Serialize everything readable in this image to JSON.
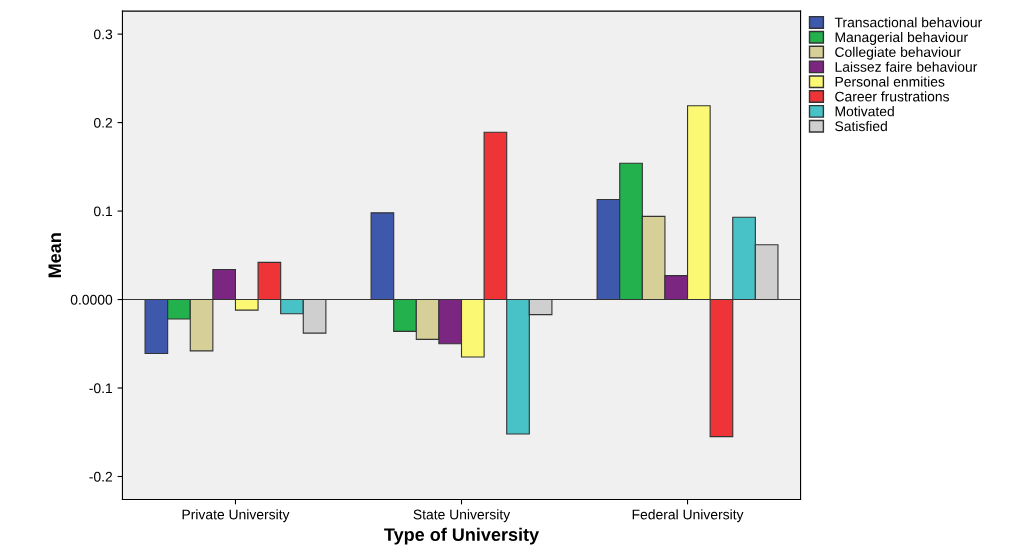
{
  "chart_data": {
    "type": "bar",
    "xlabel": "Type of University",
    "ylabel": "Mean",
    "categories": [
      "Private University",
      "State University",
      "Federal University"
    ],
    "series": [
      {
        "name": "Transactional behaviour",
        "color": "#3e58ac",
        "values": [
          -0.061,
          0.098,
          0.113
        ]
      },
      {
        "name": "Managerial behaviour",
        "color": "#22b14c",
        "values": [
          -0.022,
          -0.036,
          0.154
        ]
      },
      {
        "name": "Collegiate behaviour",
        "color": "#d6cf98",
        "values": [
          -0.058,
          -0.045,
          0.094
        ]
      },
      {
        "name": "Laissez faire behaviour",
        "color": "#7b2680",
        "values": [
          0.034,
          -0.05,
          0.027
        ]
      },
      {
        "name": "Personal enmities",
        "color": "#fbf873",
        "values": [
          -0.012,
          -0.065,
          0.219
        ]
      },
      {
        "name": "Career frustrations",
        "color": "#ef3438",
        "values": [
          0.042,
          0.189,
          -0.155
        ]
      },
      {
        "name": "Motivated",
        "color": "#48c2c6",
        "values": [
          -0.016,
          -0.152,
          0.093
        ]
      },
      {
        "name": "Satisfied",
        "color": "#cfcfcf",
        "values": [
          -0.038,
          -0.017,
          0.062
        ]
      }
    ],
    "ylim": [
      -0.226,
      0.326
    ],
    "yticks": [
      -0.2,
      -0.1,
      {
        "value": 0,
        "label": "0.0000"
      },
      0.1,
      0.2,
      0.3
    ],
    "ref_lines": [
      {
        "axis": "y",
        "value": 0,
        "color": "#333333"
      }
    ],
    "grid": false,
    "legend": "top right"
  }
}
